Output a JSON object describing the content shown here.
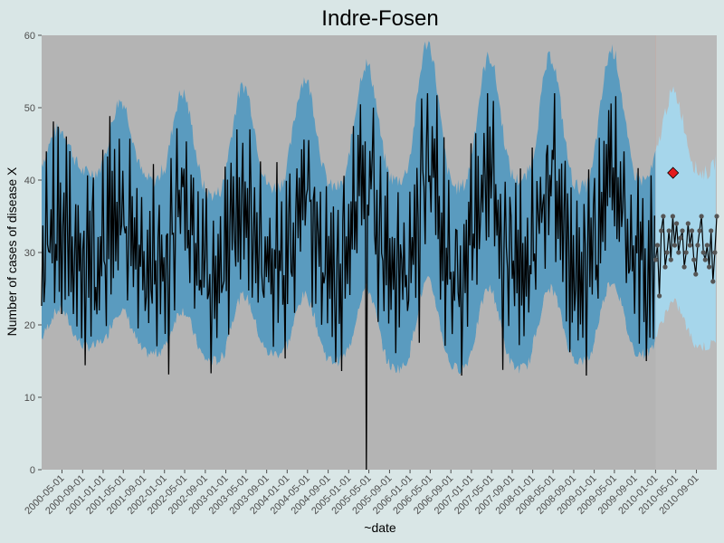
{
  "chart_data": {
    "type": "line",
    "title": "Indre-Fosen",
    "xlabel": "~date",
    "ylabel": "Number of cases of disease X",
    "ylim": [
      0,
      60
    ],
    "y_ticks": [
      0,
      10,
      20,
      30,
      40,
      50,
      60
    ],
    "x_range": [
      "2000-01-01",
      "2010-12-31"
    ],
    "x_ticks": [
      "2000-05-01",
      "2000-09-01",
      "2001-01-01",
      "2001-05-01",
      "2001-09-01",
      "2002-01-01",
      "2002-05-01",
      "2002-09-01",
      "2003-01-01",
      "2003-05-01",
      "2003-09-01",
      "2004-01-01",
      "2004-05-01",
      "2004-09-01",
      "2005-01-01",
      "2005-05-01",
      "2005-09-01",
      "2006-01-01",
      "2006-05-01",
      "2006-09-01",
      "2007-01-01",
      "2007-05-01",
      "2007-09-01",
      "2008-01-01",
      "2008-05-01",
      "2008-09-01",
      "2009-01-01",
      "2009-05-01",
      "2009-09-01",
      "2010-01-01",
      "2010-05-01",
      "2010-09-01"
    ],
    "training_end": "2010-01-01",
    "grid": false,
    "colors": {
      "background": "#d9e6e6",
      "low_zone": "#b4b4b4",
      "expected_zone_training": "#5a9bbf",
      "expected_zone_test": "#9fd3ea",
      "high_zone_training": "#d06248",
      "high_zone_test": "#fe9175",
      "observed_line": "#000000",
      "test_points": "#555555",
      "alert_point": "#e31a1c"
    },
    "seasonal_pattern": {
      "peak_month": 4,
      "threshold_high_peaks": [
        47,
        51,
        52,
        53,
        54,
        56,
        59,
        57,
        57,
        58,
        52
      ],
      "threshold_high_troughs": [
        41,
        40,
        38,
        39,
        39,
        40,
        39,
        40,
        39,
        40,
        41
      ],
      "threshold_low_peaks": [
        22,
        22,
        22,
        24,
        24,
        25,
        26,
        25,
        25,
        26,
        23
      ],
      "threshold_low_troughs": [
        17,
        16,
        15,
        16,
        15,
        14,
        14,
        14,
        15,
        16,
        17
      ]
    },
    "series": [
      {
        "name": "",
        "values": [
          24,
          31,
          13,
          28,
          44,
          22,
          35,
          19,
          41,
          27,
          51,
          18,
          33,
          25,
          46,
          21,
          38,
          13,
          29,
          42,
          17,
          45,
          26,
          15,
          47,
          20,
          34,
          16,
          28,
          45,
          19,
          39,
          22,
          37,
          14,
          41,
          31,
          0,
          25,
          48,
          23,
          34,
          13,
          39,
          52,
          20,
          30,
          17,
          44,
          25,
          36,
          19,
          49,
          22,
          33,
          18,
          42,
          27,
          51,
          15,
          35,
          24,
          48,
          21,
          29,
          14,
          40,
          26,
          33,
          47,
          28
        ]
      },
      {
        "name": "",
        "values": [
          29,
          31,
          24,
          33,
          35,
          28,
          30,
          33,
          29,
          35,
          31,
          34,
          30,
          32,
          33,
          28,
          30,
          34,
          31,
          33,
          29,
          27,
          31,
          33,
          35,
          30,
          29,
          31,
          28,
          33,
          26,
          30,
          35
        ]
      }
    ],
    "alert": {
      "date": "2010-04-15",
      "value": 41
    }
  }
}
